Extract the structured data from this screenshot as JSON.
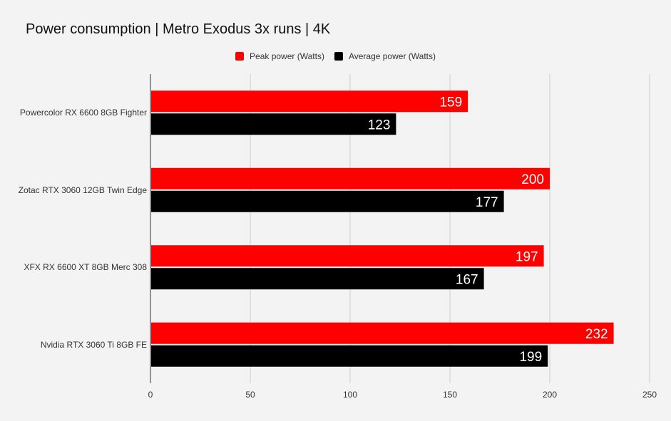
{
  "chart_data": {
    "type": "bar",
    "orientation": "horizontal",
    "title": "Power consumption | Metro Exodus 3x runs | 4K",
    "categories": [
      "Powercolor RX 6600 8GB Fighter",
      "Zotac RTX 3060 12GB Twin Edge",
      "XFX RX 6600 XT 8GB Merc 308",
      "Nvidia RTX 3060 Ti 8GB FE"
    ],
    "series": [
      {
        "name": "Peak power (Watts)",
        "color": "#ff0000",
        "values": [
          159,
          200,
          197,
          232
        ]
      },
      {
        "name": "Average power (Watts)",
        "color": "#000000",
        "values": [
          123,
          177,
          167,
          199
        ]
      }
    ],
    "xlim": [
      0,
      250
    ],
    "xticks": [
      0,
      50,
      100,
      150,
      200,
      250
    ],
    "xlabel": "",
    "ylabel": "",
    "grid": true,
    "legend": "top-center",
    "data_labels": true
  }
}
